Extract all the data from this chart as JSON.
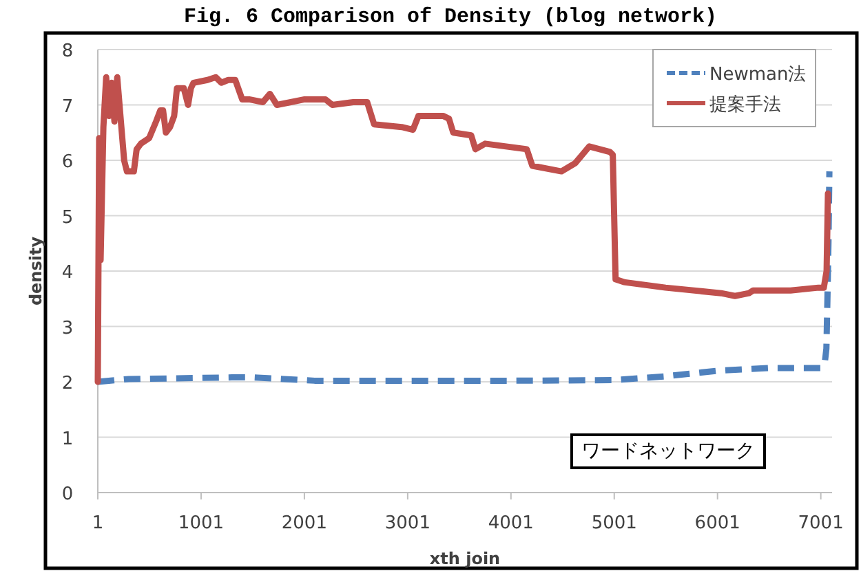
{
  "chart_data": {
    "type": "line",
    "title": "Fig. 6 Comparison of Density (blog network)",
    "xlabel": "xth join",
    "ylabel": "density",
    "annotations": [
      "ワードネットワーク"
    ],
    "xlim": [
      1,
      7110
    ],
    "xticks": [
      1,
      1001,
      2001,
      3001,
      4001,
      5001,
      6001,
      7001
    ],
    "ylim": [
      0,
      8
    ],
    "yticks": [
      0,
      1,
      2,
      3,
      4,
      5,
      6,
      7,
      8
    ],
    "grid": "y",
    "legend": "top right",
    "series": [
      {
        "name": "Newman法",
        "color": "#4f81bd",
        "line_style": "dashed",
        "x": [
          1,
          300,
          1000,
          1300,
          1500,
          1800,
          2100,
          3000,
          4000,
          5000,
          5500,
          6000,
          6500,
          7000,
          7040,
          7055,
          7065,
          7075,
          7084
        ],
        "values": [
          2.0,
          2.05,
          2.07,
          2.08,
          2.08,
          2.05,
          2.02,
          2.02,
          2.02,
          2.03,
          2.1,
          2.2,
          2.25,
          2.25,
          2.35,
          2.6,
          3.5,
          4.5,
          5.8
        ]
      },
      {
        "name": "提案手法",
        "color": "#c0504d",
        "line_style": "solid",
        "x": [
          1,
          14,
          28,
          55,
          82,
          109,
          135,
          162,
          189,
          229,
          256,
          283,
          350,
          377,
          418,
          498,
          565,
          606,
          633,
          660,
          700,
          740,
          767,
          834,
          875,
          902,
          928,
          1063,
          1143,
          1197,
          1264,
          1332,
          1399,
          1466,
          1600,
          1667,
          1735,
          1869,
          2003,
          2205,
          2272,
          2474,
          2609,
          2676,
          2944,
          3052,
          3105,
          3347,
          3401,
          3442,
          3616,
          3657,
          3751,
          4154,
          4208,
          4490,
          4624,
          4692,
          4759,
          4960,
          4987,
          5014,
          5095,
          5498,
          6036,
          6170,
          6305,
          6345,
          6708,
          6977,
          7030,
          7057,
          7070
        ],
        "values": [
          2.0,
          6.4,
          4.2,
          6.6,
          7.5,
          6.8,
          7.4,
          6.7,
          7.5,
          6.6,
          6.0,
          5.8,
          5.8,
          6.2,
          6.3,
          6.4,
          6.7,
          6.9,
          6.9,
          6.5,
          6.6,
          6.8,
          7.3,
          7.3,
          7.0,
          7.3,
          7.4,
          7.45,
          7.5,
          7.4,
          7.45,
          7.45,
          7.1,
          7.1,
          7.05,
          7.2,
          7.0,
          7.05,
          7.1,
          7.1,
          7.0,
          7.05,
          7.05,
          6.65,
          6.6,
          6.55,
          6.8,
          6.8,
          6.75,
          6.5,
          6.45,
          6.2,
          6.3,
          6.2,
          5.9,
          5.8,
          5.95,
          6.1,
          6.25,
          6.15,
          6.1,
          3.85,
          3.8,
          3.7,
          3.6,
          3.55,
          3.6,
          3.65,
          3.65,
          3.7,
          3.7,
          4.0,
          5.4
        ]
      }
    ]
  }
}
